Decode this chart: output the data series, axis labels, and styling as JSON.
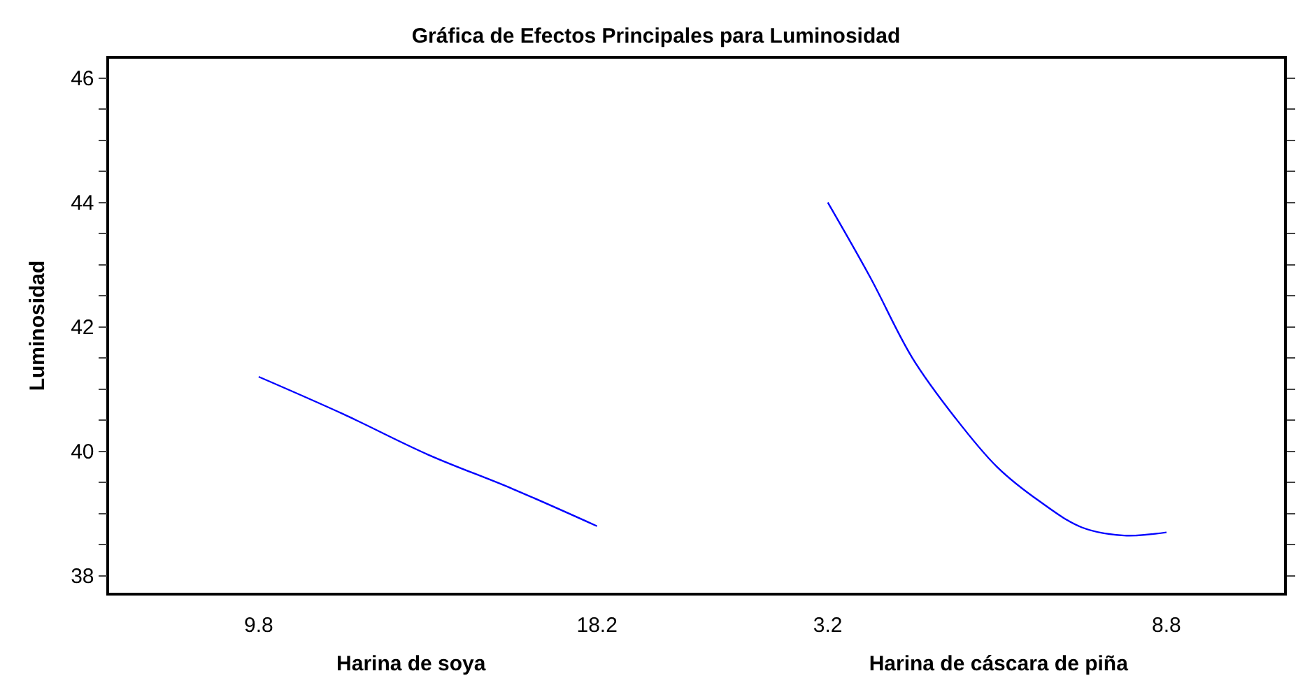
{
  "chart_data": [
    {
      "type": "line",
      "title": "Gráfica de Efectos Principales para Luminosidad",
      "ylabel": "Luminosidad",
      "xlabel": "Harina de soya",
      "xlim": [
        6.086,
        21.08
      ],
      "xticks": [
        9.8,
        18.2
      ],
      "ylim": [
        37.73,
        46.31
      ],
      "yticks": [
        38,
        {
          "value": 38.5,
          "label": null
        },
        {
          "value": 39,
          "label": null
        },
        {
          "value": 39.5,
          "label": null
        },
        40,
        {
          "value": 40.5,
          "label": null
        },
        {
          "value": 41,
          "label": null
        },
        {
          "value": 41.5,
          "label": null
        },
        42,
        {
          "value": 42.5,
          "label": null
        },
        {
          "value": 43,
          "label": null
        },
        {
          "value": 43.5,
          "label": null
        },
        44,
        {
          "value": 44.5,
          "label": null
        },
        {
          "value": 45,
          "label": null
        },
        {
          "value": 45.5,
          "label": null
        },
        46
      ],
      "marker": "none",
      "line_style": "solid",
      "series": [
        {
          "color": "#0000ff",
          "x": [
            9.8,
            11.9,
            14.0,
            16.1,
            18.2
          ],
          "values": [
            41.2,
            40.6,
            39.95,
            39.4,
            38.8
          ]
        }
      ]
    },
    {
      "type": "line",
      "xlabel": "Harina de cáscara de piña",
      "xlim": [
        1.302,
        10.744
      ],
      "xticks": [
        3.2,
        8.8
      ],
      "ylim": [
        37.73,
        46.31
      ],
      "yticks": [
        38,
        {
          "value": 38.5,
          "label": null
        },
        {
          "value": 39,
          "label": null
        },
        {
          "value": 39.5,
          "label": null
        },
        40,
        {
          "value": 40.5,
          "label": null
        },
        {
          "value": 41,
          "label": null
        },
        {
          "value": 41.5,
          "label": null
        },
        42,
        {
          "value": 42.5,
          "label": null
        },
        {
          "value": 43,
          "label": null
        },
        {
          "value": 43.5,
          "label": null
        },
        44,
        {
          "value": 44.5,
          "label": null
        },
        {
          "value": 45,
          "label": null
        },
        {
          "value": 45.5,
          "label": null
        },
        46
      ],
      "tick_labels": "x",
      "marker": "none",
      "line_style": "solid",
      "series": [
        {
          "color": "#0000ff",
          "x": [
            3.2,
            3.9,
            4.6,
            5.3,
            6.0,
            6.7,
            7.4,
            8.1,
            8.8
          ],
          "values": [
            44.0,
            42.8,
            41.5,
            40.55,
            39.75,
            39.2,
            38.78,
            38.65,
            38.7
          ]
        }
      ]
    }
  ]
}
